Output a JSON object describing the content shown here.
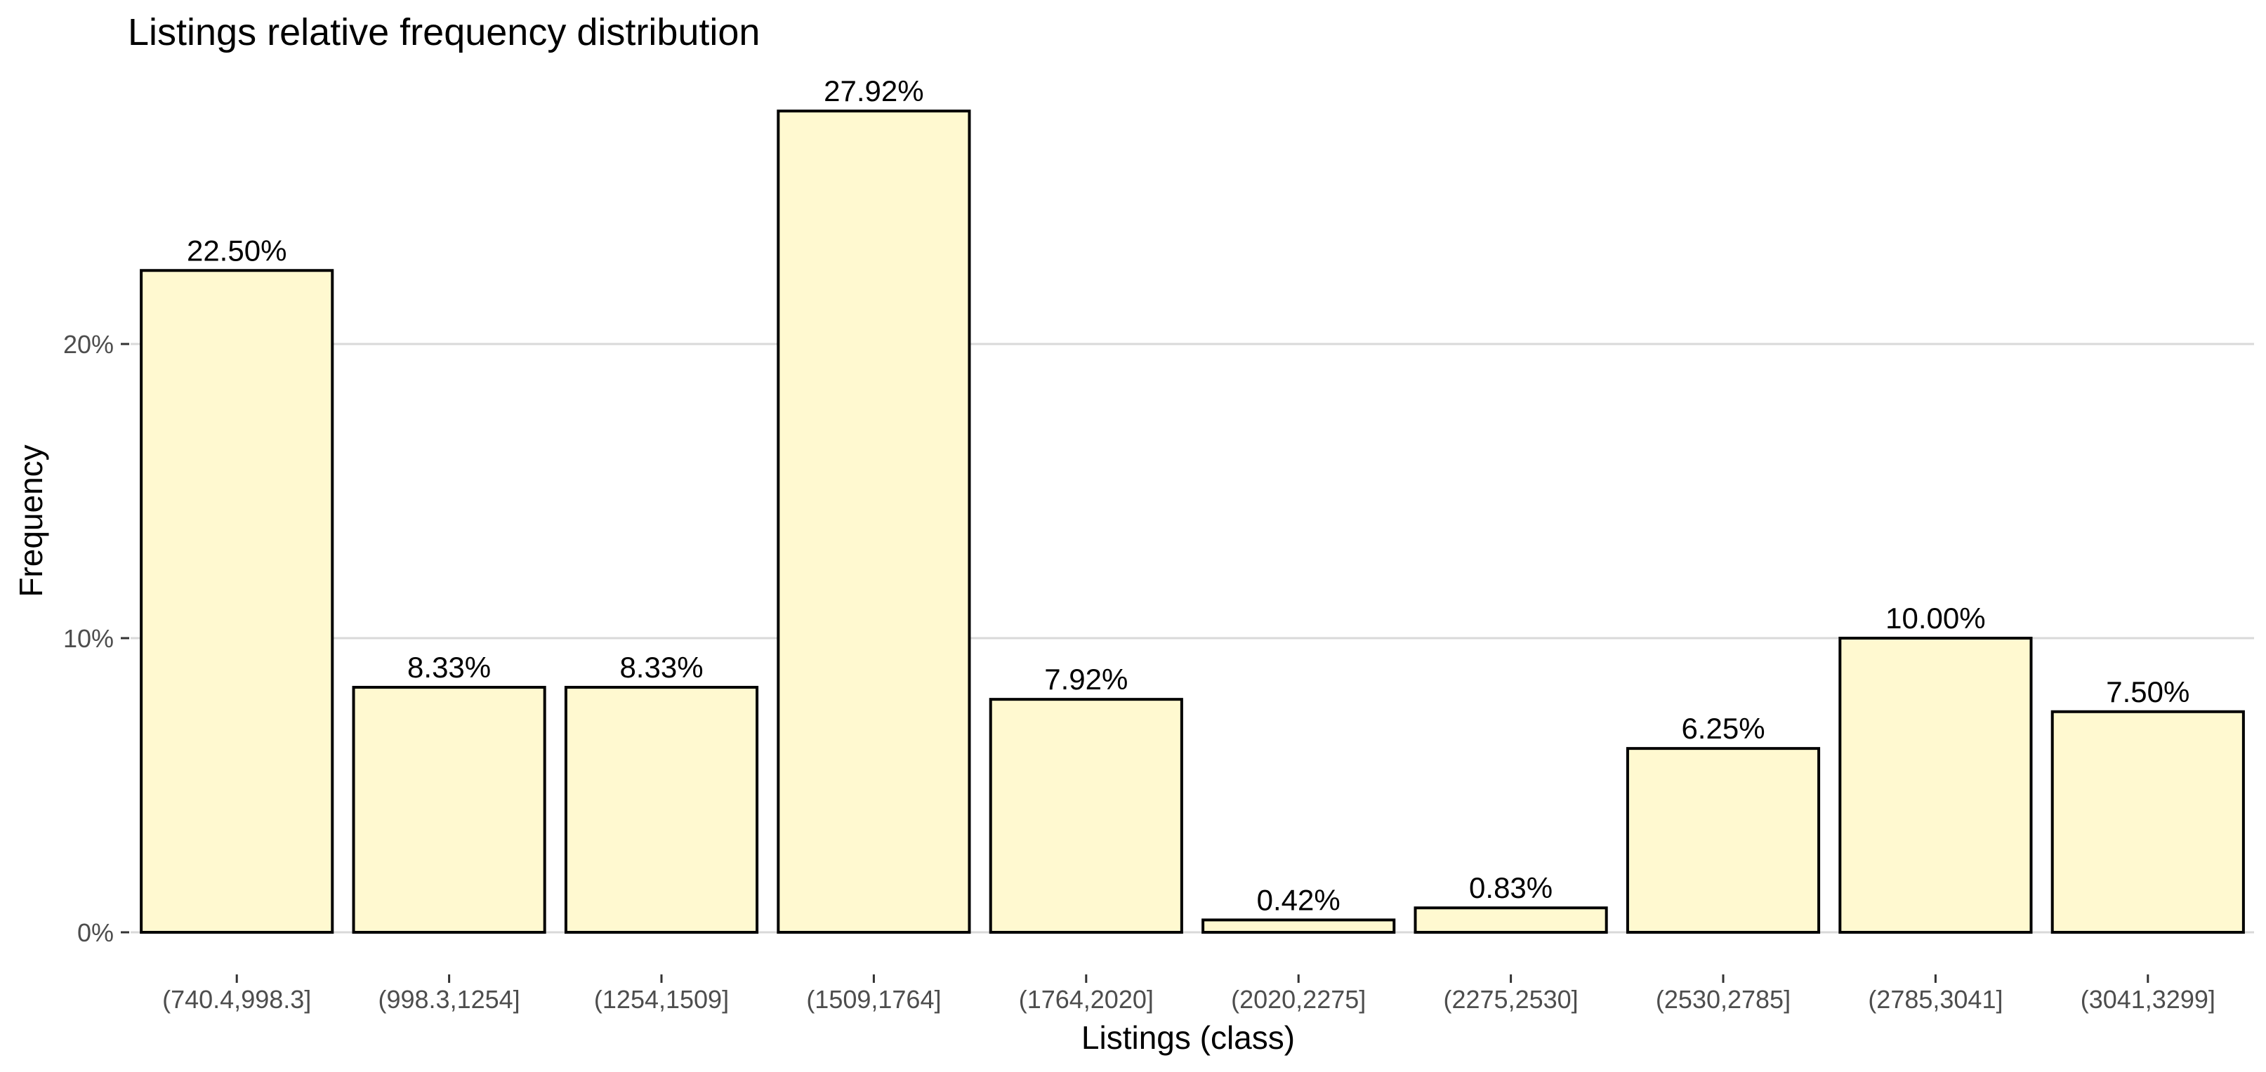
{
  "chart_data": {
    "type": "bar",
    "title": "Listings relative frequency distribution",
    "xlabel": "Listings (class)",
    "ylabel": "Frequency",
    "categories": [
      "(740.4,998.3]",
      "(998.3,1254]",
      "(1254,1509]",
      "(1509,1764]",
      "(1764,2020]",
      "(2020,2275]",
      "(2275,2530]",
      "(2530,2785]",
      "(2785,3041]",
      "(3041,3299]"
    ],
    "values": [
      22.5,
      8.33,
      8.33,
      27.92,
      7.92,
      0.42,
      0.83,
      6.25,
      10.0,
      7.5
    ],
    "value_labels": [
      "22.50%",
      "8.33%",
      "8.33%",
      "27.92%",
      "7.92%",
      "0.42%",
      "0.83%",
      "6.25%",
      "10.00%",
      "7.50%"
    ],
    "y_ticks": [
      0,
      10,
      20
    ],
    "y_tick_labels": [
      "0%",
      "10%",
      "20%"
    ],
    "ylim": [
      0,
      29.3
    ],
    "grid": true,
    "bar_fill": "#fff9d0",
    "bar_stroke": "#000000"
  }
}
